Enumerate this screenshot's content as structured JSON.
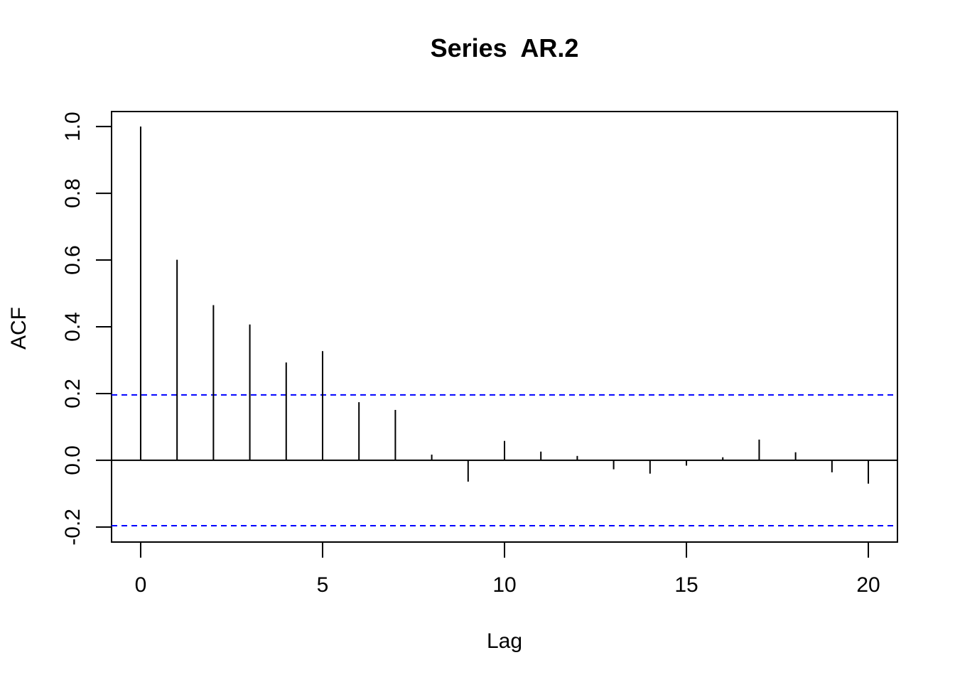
{
  "chart_data": {
    "type": "bar",
    "title": "Series  AR.2",
    "xlabel": "Lag",
    "ylabel": "ACF",
    "xlim": [
      -0.8,
      20.8
    ],
    "ylim": [
      -0.245,
      1.045
    ],
    "x_ticks": [
      0,
      5,
      10,
      15,
      20
    ],
    "x_tick_labels": [
      "0",
      "5",
      "10",
      "15",
      "20"
    ],
    "y_ticks": [
      -0.2,
      0.0,
      0.2,
      0.4,
      0.6,
      0.8,
      1.0
    ],
    "y_tick_labels": [
      "-0.2",
      "0.0",
      "0.2",
      "0.4",
      "0.6",
      "0.8",
      "1.0"
    ],
    "x": [
      0,
      1,
      2,
      3,
      4,
      5,
      6,
      7,
      8,
      9,
      10,
      11,
      12,
      13,
      14,
      15,
      16,
      17,
      18,
      19,
      20
    ],
    "values": [
      1.0,
      0.601,
      0.465,
      0.407,
      0.293,
      0.327,
      0.174,
      0.151,
      0.017,
      -0.064,
      0.058,
      0.026,
      0.013,
      -0.027,
      -0.04,
      -0.016,
      0.009,
      0.062,
      0.024,
      -0.036,
      -0.07
    ],
    "confidence_bound": 0.196,
    "grid": false,
    "colors": {
      "bars": "#000000",
      "confidence_lines": "#0000ff",
      "zero_line": "#000000",
      "frame": "#000000",
      "background": "#ffffff"
    }
  }
}
